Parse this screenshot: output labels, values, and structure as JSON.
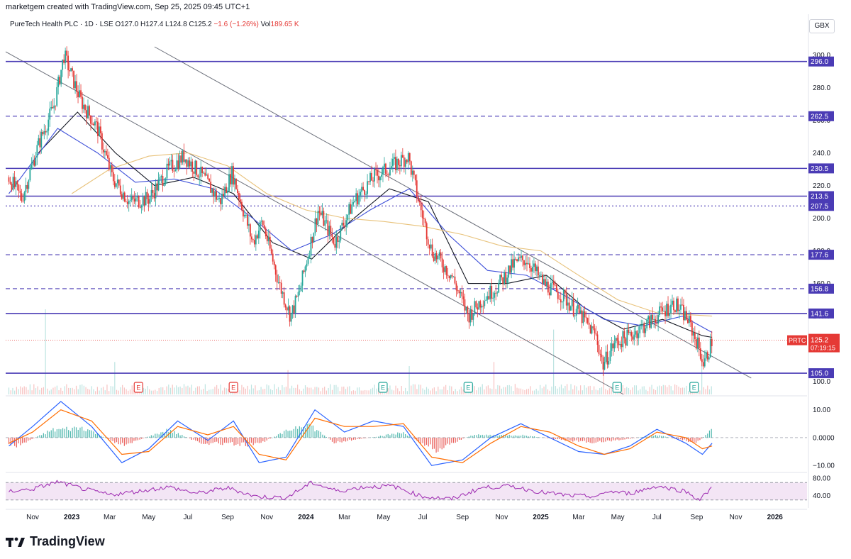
{
  "header": {
    "created": "marketgem created with TradingView.com, Sep 25, 2025 09:45 UTC+1",
    "symbol": "PureTech Health PLC · 1D · LSE",
    "o_label": "O",
    "o": "127.0",
    "h_label": "H",
    "h": "127.4",
    "l_label": "L",
    "l": "124.8",
    "c_label": "C",
    "c": "125.2",
    "change": "−1.6 (−1.26%)",
    "vol_label": "Vol",
    "vol": "189.65 K"
  },
  "currency": "GBX",
  "brand": "TradingView",
  "colors": {
    "level": "#4a3bb5",
    "price_line": "#e53935",
    "ma_black": "#131722",
    "ma_blue": "#3f51d9",
    "ma_yellow": "#e8c27a",
    "candle_up": "#26a69a",
    "candle_down": "#e53935",
    "rsi": "#9c27b0",
    "macd_fast": "#2962ff",
    "macd_slow": "#ff6d00"
  },
  "chart_data": [
    {
      "type": "candlestick",
      "title": "PureTech Health PLC · 1D · LSE",
      "ylim": [
        92,
        305
      ],
      "y_ticks": [
        100.0,
        120.0,
        140.0,
        160.0,
        180.0,
        200.0,
        220.0,
        240.0,
        260.0,
        280.0,
        300.0
      ],
      "x_tick_labels": [
        "Nov",
        "2023",
        "Mar",
        "May",
        "Jul",
        "Sep",
        "Nov",
        "2024",
        "Mar",
        "May",
        "Jul",
        "Sep",
        "Nov",
        "2025",
        "Mar",
        "May",
        "Jul",
        "Sep",
        "Nov",
        "2026"
      ],
      "last_price": {
        "symbol": "PRTC",
        "value": 125.2,
        "countdown": "07:19:15"
      },
      "levels": [
        {
          "value": 296.0,
          "style": "solid",
          "label": "296.0"
        },
        {
          "value": 262.5,
          "style": "dashed",
          "label": "262.5"
        },
        {
          "value": 230.5,
          "style": "solid",
          "label": "230.5"
        },
        {
          "value": 213.5,
          "style": "solid",
          "label": "213.5"
        },
        {
          "value": 207.5,
          "style": "dotted",
          "label": "207.5"
        },
        {
          "value": 177.6,
          "style": "dashed",
          "label": "177.6"
        },
        {
          "value": 156.8,
          "style": "dashed",
          "label": "156.8"
        },
        {
          "value": 141.6,
          "style": "solid",
          "label": "141.6"
        },
        {
          "value": 105.0,
          "style": "solid",
          "label": "105.0"
        }
      ],
      "close_series": {
        "x": [
          "2022-09-25",
          "2022-10-15",
          "2022-11-10",
          "2022-12-05",
          "2022-12-20",
          "2023-01-15",
          "2023-02-10",
          "2023-03-05",
          "2023-04-01",
          "2023-05-01",
          "2023-06-01",
          "2023-06-25",
          "2023-07-25",
          "2023-08-20",
          "2023-09-08",
          "2023-10-10",
          "2023-10-25",
          "2023-11-20",
          "2023-12-08",
          "2023-12-22",
          "2024-01-20",
          "2024-02-15",
          "2024-03-15",
          "2024-04-15",
          "2024-05-15",
          "2024-06-08",
          "2024-06-25",
          "2024-07-15",
          "2024-08-15",
          "2024-09-10",
          "2024-10-01",
          "2024-10-25",
          "2024-11-20",
          "2024-12-10",
          "2025-01-05",
          "2025-02-05",
          "2025-03-05",
          "2025-03-28",
          "2025-04-08",
          "2025-04-25",
          "2025-05-20",
          "2025-06-15",
          "2025-07-08",
          "2025-07-28",
          "2025-08-18",
          "2025-09-05",
          "2025-09-12",
          "2025-09-25"
        ],
        "y": [
          225,
          212,
          245,
          270,
          300,
          272,
          255,
          225,
          210,
          212,
          230,
          238,
          225,
          210,
          228,
          185,
          198,
          160,
          140,
          155,
          205,
          185,
          210,
          225,
          232,
          238,
          210,
          180,
          165,
          140,
          150,
          158,
          172,
          175,
          160,
          152,
          140,
          128,
          110,
          123,
          128,
          135,
          142,
          148,
          138,
          120,
          110,
          125.2
        ]
      },
      "moving_averages": [
        {
          "color": "#131722",
          "x": [
            "2022-11-10",
            "2023-01-10",
            "2023-03-10",
            "2023-05-10",
            "2023-07-10",
            "2023-09-10",
            "2023-11-10",
            "2024-01-10",
            "2024-03-10",
            "2024-05-10",
            "2024-07-10",
            "2024-09-10",
            "2024-11-10",
            "2025-01-10",
            "2025-03-10",
            "2025-05-10",
            "2025-07-10",
            "2025-09-10",
            "2025-09-25"
          ],
          "y": [
            240,
            265,
            240,
            220,
            225,
            215,
            185,
            175,
            198,
            218,
            210,
            160,
            160,
            165,
            145,
            132,
            138,
            128,
            127
          ]
        },
        {
          "color": "#3f51d9",
          "x": [
            "2022-09-25",
            "2022-12-10",
            "2023-02-10",
            "2023-04-10",
            "2023-06-10",
            "2023-08-10",
            "2023-10-10",
            "2023-12-10",
            "2024-02-10",
            "2024-04-10",
            "2024-06-10",
            "2024-08-10",
            "2024-10-10",
            "2024-12-10",
            "2025-02-10",
            "2025-04-10",
            "2025-06-10",
            "2025-08-10",
            "2025-09-25"
          ],
          "y": [
            215,
            255,
            240,
            222,
            224,
            218,
            200,
            180,
            190,
            205,
            218,
            190,
            168,
            165,
            152,
            138,
            134,
            140,
            130
          ]
        },
        {
          "color": "#e8c27a",
          "x": [
            "2023-01-01",
            "2023-03-01",
            "2023-05-01",
            "2023-07-01",
            "2023-09-01",
            "2023-11-01",
            "2024-01-01",
            "2024-03-01",
            "2024-05-01",
            "2024-07-01",
            "2024-09-01",
            "2024-11-01",
            "2025-01-01",
            "2025-03-01",
            "2025-05-01",
            "2025-07-01",
            "2025-09-25"
          ],
          "y": [
            215,
            230,
            238,
            240,
            232,
            215,
            205,
            200,
            198,
            195,
            190,
            183,
            180,
            165,
            150,
            142,
            140
          ]
        }
      ],
      "trendlines": [
        {
          "from": [
            "2022-09-20",
            302
          ],
          "to": [
            "2025-05-10",
            92
          ]
        },
        {
          "from": [
            "2023-05-10",
            305
          ],
          "to": [
            "2025-11-25",
            102
          ]
        }
      ],
      "volume": {
        "x": [
          "2022-11-20",
          "2023-03-10",
          "2023-12-05",
          "2024-06-10",
          "2024-10-20",
          "2025-01-20",
          "2025-04-08",
          "2025-09-08"
        ],
        "y": [
          2.1,
          0.8,
          0.6,
          0.7,
          0.8,
          1.6,
          0.9,
          1.0
        ]
      },
      "earnings_markers": [
        {
          "x": "2023-04-15",
          "label": "E",
          "kind": "loss"
        },
        {
          "x": "2023-09-10",
          "label": "E",
          "kind": "loss"
        },
        {
          "x": "2024-04-30",
          "label": "E",
          "kind": "gain"
        },
        {
          "x": "2024-09-10",
          "label": "E",
          "kind": "gain"
        },
        {
          "x": "2025-04-30",
          "label": "E",
          "kind": "gain"
        },
        {
          "x": "2025-08-28",
          "label": "E",
          "kind": "gain"
        }
      ]
    },
    {
      "type": "line",
      "title": "",
      "y_ticks": [
        10.0,
        0.0,
        -10.0
      ],
      "y_tick_labels": [
        "10.00",
        "0.0000",
        "−10.00"
      ],
      "ylim": [
        -12,
        14
      ],
      "series": [
        {
          "x": [
            "2022-09-25",
            "2022-11-01",
            "2022-12-15",
            "2023-02-01",
            "2023-03-20",
            "2023-05-01",
            "2023-06-15",
            "2023-08-01",
            "2023-09-10",
            "2023-10-20",
            "2023-12-01",
            "2024-01-15",
            "2024-03-01",
            "2024-04-15",
            "2024-06-01",
            "2024-07-15",
            "2024-09-01",
            "2024-10-15",
            "2024-12-01",
            "2025-01-15",
            "2025-03-01",
            "2025-04-10",
            "2025-05-20",
            "2025-07-01",
            "2025-08-15",
            "2025-09-10",
            "2025-09-25"
          ],
          "y": [
            -3,
            4,
            13,
            4,
            -9,
            -4,
            6,
            -1,
            6,
            -9,
            -7,
            10,
            2,
            6,
            4,
            -10,
            -8,
            0,
            5,
            0,
            -5,
            -6,
            -3,
            3,
            -2,
            -6,
            -2
          ]
        },
        {
          "x": [
            "2022-09-25",
            "2022-11-01",
            "2022-12-15",
            "2023-02-01",
            "2023-03-20",
            "2023-05-01",
            "2023-06-15",
            "2023-08-01",
            "2023-09-10",
            "2023-10-20",
            "2023-12-01",
            "2024-01-15",
            "2024-03-01",
            "2024-04-15",
            "2024-06-01",
            "2024-07-15",
            "2024-09-01",
            "2024-10-15",
            "2024-12-01",
            "2025-01-15",
            "2025-03-01",
            "2025-04-10",
            "2025-05-20",
            "2025-07-01",
            "2025-08-15",
            "2025-09-10",
            "2025-09-25"
          ],
          "y": [
            -2,
            2,
            10,
            6,
            -6,
            -5,
            4,
            1,
            4,
            -6,
            -8,
            7,
            4,
            4,
            5,
            -7,
            -9,
            -2,
            4,
            2,
            -3,
            -6,
            -4,
            2,
            0,
            -4,
            -3
          ]
        }
      ],
      "histogram": {
        "x": [
          "2022-10-10",
          "2022-12-01",
          "2023-01-20",
          "2023-03-20",
          "2023-06-01",
          "2023-07-20",
          "2023-10-15",
          "2024-01-01",
          "2024-02-15",
          "2024-06-01",
          "2024-07-20",
          "2024-09-15",
          "2024-12-01",
          "2025-03-15",
          "2025-05-01",
          "2025-07-01",
          "2025-09-01",
          "2025-09-25"
        ],
        "y": [
          -3,
          3,
          4,
          -3,
          3,
          -2,
          -3,
          6,
          -2,
          2,
          -5,
          1,
          1,
          -2,
          -1,
          1,
          -2,
          3
        ]
      }
    },
    {
      "type": "line",
      "title": "",
      "y_ticks": [
        80.0,
        40.0
      ],
      "y_tick_labels": [
        "80.00",
        "40.00"
      ],
      "bands": [
        70,
        30
      ],
      "ylim": [
        15,
        90
      ],
      "series": [
        {
          "x": [
            "2022-09-25",
            "2022-11-01",
            "2022-12-10",
            "2023-01-20",
            "2023-03-01",
            "2023-04-15",
            "2023-06-01",
            "2023-07-15",
            "2023-09-01",
            "2023-10-15",
            "2023-12-01",
            "2024-01-10",
            "2024-02-20",
            "2024-04-01",
            "2024-05-15",
            "2024-07-01",
            "2024-08-15",
            "2024-10-01",
            "2024-11-15",
            "2025-01-01",
            "2025-02-15",
            "2025-04-01",
            "2025-04-15",
            "2025-05-20",
            "2025-07-01",
            "2025-08-15",
            "2025-09-05",
            "2025-09-25"
          ],
          "y": [
            50,
            55,
            72,
            55,
            42,
            50,
            60,
            45,
            58,
            38,
            35,
            70,
            50,
            60,
            62,
            38,
            32,
            58,
            62,
            48,
            40,
            38,
            50,
            45,
            62,
            50,
            30,
            58
          ]
        }
      ]
    }
  ]
}
